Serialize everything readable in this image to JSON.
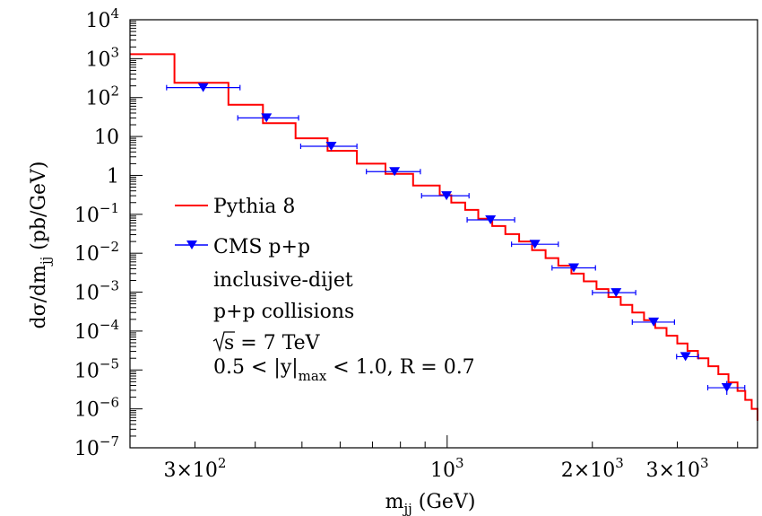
{
  "chart_data": {
    "type": "line",
    "xlabel": "m",
    "xlabel_sub": "jj",
    "xlabel_unit": "(GeV)",
    "ylabel": "dσ/dm",
    "ylabel_sub": "jj",
    "ylabel_unit": "(pb/GeV)",
    "x_scale": "log",
    "y_scale": "log",
    "xlim": [
      220,
      4400
    ],
    "ylim": [
      1e-07,
      10000.0
    ],
    "grid": false,
    "legend_position": "left-middle",
    "x_ticks": [
      {
        "value": 300,
        "mant": "3×10",
        "exp": "2"
      },
      {
        "value": 1000,
        "mant": "10",
        "exp": "3"
      },
      {
        "value": 2000,
        "mant": "2×10",
        "exp": "3"
      },
      {
        "value": 3000,
        "mant": "3×10",
        "exp": "3"
      }
    ],
    "y_ticks": [
      {
        "value": 10000.0,
        "mant": "10",
        "exp": "4"
      },
      {
        "value": 1000.0,
        "mant": "10",
        "exp": "3"
      },
      {
        "value": 100.0,
        "mant": "10",
        "exp": "2"
      },
      {
        "value": 10,
        "mant": "10",
        "exp": ""
      },
      {
        "value": 1,
        "mant": "1",
        "exp": ""
      },
      {
        "value": 0.1,
        "mant": "10",
        "exp": "−1"
      },
      {
        "value": 0.01,
        "mant": "10",
        "exp": "−2"
      },
      {
        "value": 0.001,
        "mant": "10",
        "exp": "−3"
      },
      {
        "value": 0.0001,
        "mant": "10",
        "exp": "−4"
      },
      {
        "value": 1e-05,
        "mant": "10",
        "exp": "−5"
      },
      {
        "value": 1e-06,
        "mant": "10",
        "exp": "−6"
      },
      {
        "value": 1e-07,
        "mant": "10",
        "exp": "−7"
      }
    ],
    "series": [
      {
        "name": "Pythia 8",
        "kind": "step",
        "color": "#ff0000",
        "bins": [
          {
            "x0": 220,
            "x1": 272,
            "y": 1300
          },
          {
            "x0": 272,
            "x1": 352,
            "y": 240
          },
          {
            "x0": 352,
            "x1": 415,
            "y": 65
          },
          {
            "x0": 415,
            "x1": 485,
            "y": 22
          },
          {
            "x0": 485,
            "x1": 565,
            "y": 9
          },
          {
            "x0": 565,
            "x1": 650,
            "y": 4.3
          },
          {
            "x0": 650,
            "x1": 745,
            "y": 2
          },
          {
            "x0": 745,
            "x1": 850,
            "y": 1.1
          },
          {
            "x0": 850,
            "x1": 965,
            "y": 0.55
          },
          {
            "x0": 965,
            "x1": 1020,
            "y": 0.31
          },
          {
            "x0": 1020,
            "x1": 1090,
            "y": 0.2
          },
          {
            "x0": 1090,
            "x1": 1160,
            "y": 0.13
          },
          {
            "x0": 1160,
            "x1": 1240,
            "y": 0.077
          },
          {
            "x0": 1240,
            "x1": 1320,
            "y": 0.05
          },
          {
            "x0": 1320,
            "x1": 1410,
            "y": 0.031
          },
          {
            "x0": 1410,
            "x1": 1500,
            "y": 0.02
          },
          {
            "x0": 1500,
            "x1": 1600,
            "y": 0.012
          },
          {
            "x0": 1600,
            "x1": 1700,
            "y": 0.0075
          },
          {
            "x0": 1700,
            "x1": 1810,
            "y": 0.0048
          },
          {
            "x0": 1810,
            "x1": 1920,
            "y": 0.003
          },
          {
            "x0": 1920,
            "x1": 2040,
            "y": 0.0019
          },
          {
            "x0": 2040,
            "x1": 2160,
            "y": 0.0012
          },
          {
            "x0": 2160,
            "x1": 2290,
            "y": 0.00075
          },
          {
            "x0": 2290,
            "x1": 2420,
            "y": 0.00047
          },
          {
            "x0": 2420,
            "x1": 2560,
            "y": 0.0003
          },
          {
            "x0": 2560,
            "x1": 2700,
            "y": 0.00019
          },
          {
            "x0": 2700,
            "x1": 2850,
            "y": 0.00012
          },
          {
            "x0": 2850,
            "x1": 3000,
            "y": 7.6e-05
          },
          {
            "x0": 3000,
            "x1": 3150,
            "y": 4.8e-05
          },
          {
            "x0": 3150,
            "x1": 3310,
            "y": 3.1e-05
          },
          {
            "x0": 3310,
            "x1": 3480,
            "y": 2e-05
          },
          {
            "x0": 3480,
            "x1": 3650,
            "y": 1.25e-05
          },
          {
            "x0": 3650,
            "x1": 3830,
            "y": 7.8e-06
          },
          {
            "x0": 3830,
            "x1": 4000,
            "y": 4.8e-06
          },
          {
            "x0": 4000,
            "x1": 4150,
            "y": 2.9e-06
          },
          {
            "x0": 4150,
            "x1": 4280,
            "y": 1.7e-06
          },
          {
            "x0": 4280,
            "x1": 4400,
            "y": 1e-06
          }
        ]
      },
      {
        "name": "CMS p+p",
        "kind": "points",
        "color": "#0000ff",
        "points": [
          {
            "x": 312,
            "y": 180,
            "xlo": 262,
            "xhi": 372
          },
          {
            "x": 422,
            "y": 30,
            "xlo": 368,
            "xhi": 492
          },
          {
            "x": 575,
            "y": 5.6,
            "xlo": 497,
            "xhi": 650
          },
          {
            "x": 778,
            "y": 1.25,
            "xlo": 680,
            "xhi": 880
          },
          {
            "x": 997,
            "y": 0.3,
            "xlo": 885,
            "xhi": 1110
          },
          {
            "x": 1230,
            "y": 0.072,
            "xlo": 1100,
            "xhi": 1380
          },
          {
            "x": 1520,
            "y": 0.017,
            "xlo": 1360,
            "xhi": 1700
          },
          {
            "x": 1830,
            "y": 0.0042,
            "xlo": 1650,
            "xhi": 2030
          },
          {
            "x": 2240,
            "y": 0.00097,
            "xlo": 2000,
            "xhi": 2460
          },
          {
            "x": 2680,
            "y": 0.00017,
            "xlo": 2420,
            "xhi": 2960
          },
          {
            "x": 3120,
            "y": 2.2e-05,
            "xlo": 2990,
            "xhi": 3320
          },
          {
            "x": 3800,
            "y": 3.5e-06,
            "xlo": 3470,
            "xhi": 4140,
            "ylo": 2.3e-06,
            "yhi": 5.2e-06
          }
        ]
      }
    ],
    "annotations": {
      "line1": "inclusive-dijet",
      "line2": "p+p collisions",
      "sqrt_s": "s = 7 TeV",
      "cut_pre": "0.5 < |y|",
      "cut_sub": "max",
      "cut_post": " < 1.0, R = 0.7"
    }
  }
}
